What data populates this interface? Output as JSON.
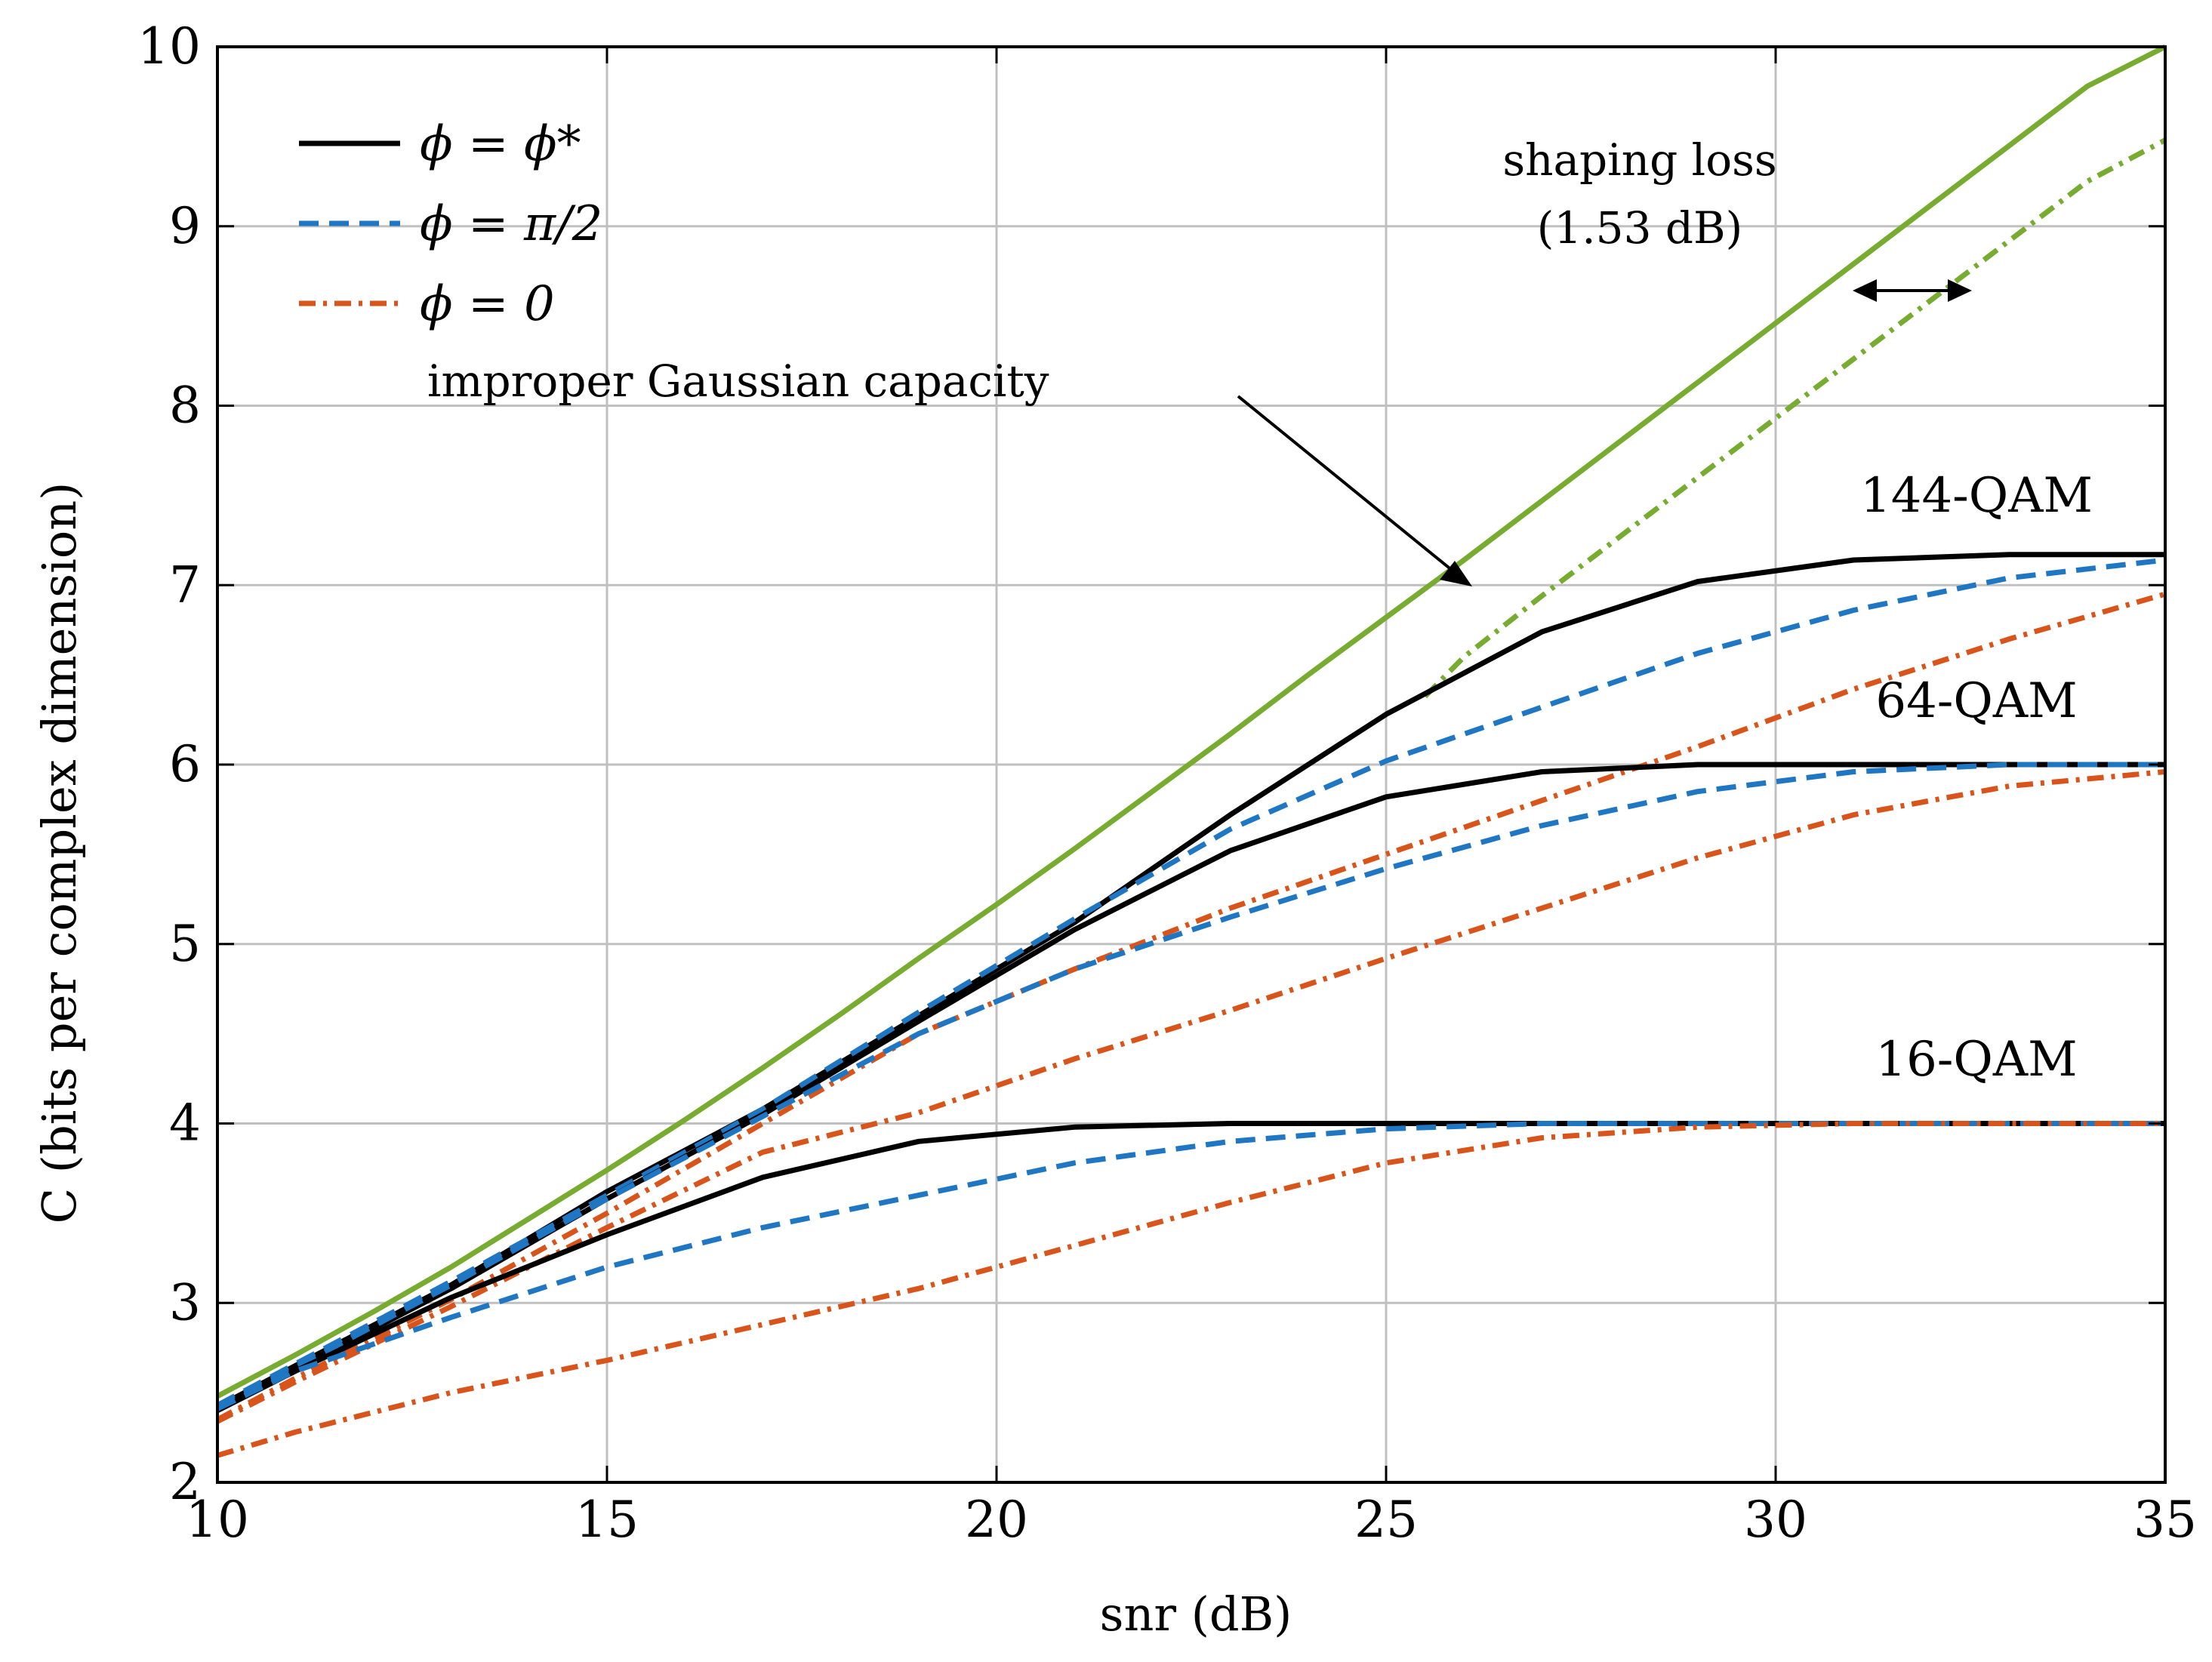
{
  "chart_data": {
    "type": "line",
    "xlabel": "snr (dB)",
    "ylabel": "C (bits per complex dimension)",
    "xlim": [
      10,
      35
    ],
    "ylim": [
      2,
      10
    ],
    "xticks": [
      10,
      15,
      20,
      25,
      30,
      35
    ],
    "yticks": [
      2,
      3,
      4,
      5,
      6,
      7,
      8,
      9,
      10
    ],
    "grid": true,
    "colors": {
      "black": "#000000",
      "blue": "#1f77c4",
      "orange": "#d9541a",
      "green": "#77ac30",
      "grid": "#c0c0c0"
    },
    "legend": {
      "placement": "top-left",
      "entries": [
        {
          "label": "ϕ = ϕ*",
          "style": "solid",
          "color": "black"
        },
        {
          "label": "ϕ = π/2",
          "style": "dashed",
          "color": "blue"
        },
        {
          "label": "ϕ = 0",
          "style": "dashdot",
          "color": "orange"
        }
      ]
    },
    "annotations": {
      "gaussian_label": "improper Gaussian capacity",
      "shaping_line1": "shaping loss",
      "shaping_line2": "(1.53 dB)",
      "qam144": "144-QAM",
      "qam64": "64-QAM",
      "qam16": "16-QAM"
    },
    "series": [
      {
        "name": "improper Gaussian capacity",
        "color": "green",
        "style": "solid",
        "x": [
          10,
          11,
          12,
          13,
          14,
          15,
          16,
          17,
          18,
          19,
          20,
          21,
          22,
          23,
          24,
          25,
          26,
          27,
          28,
          29,
          30,
          31,
          32,
          33,
          34,
          35
        ],
        "y": [
          2.48,
          2.71,
          2.95,
          3.2,
          3.47,
          3.74,
          4.02,
          4.31,
          4.61,
          4.92,
          5.22,
          5.53,
          5.85,
          6.17,
          6.5,
          6.82,
          7.14,
          7.47,
          7.8,
          8.13,
          8.46,
          8.79,
          9.12,
          9.45,
          9.78,
          10.0
        ]
      },
      {
        "name": "shaping loss curve",
        "color": "green",
        "style": "dashdot",
        "x": [
          25.5,
          26,
          27,
          28,
          29,
          30,
          31,
          32,
          33,
          34,
          35
        ],
        "y": [
          6.38,
          6.6,
          6.94,
          7.27,
          7.6,
          7.93,
          8.26,
          8.59,
          8.92,
          9.25,
          9.48
        ]
      },
      {
        "name": "144-QAM ϕ=ϕ*",
        "color": "black",
        "style": "solid",
        "x": [
          10,
          11,
          13,
          15,
          17,
          19,
          21,
          23,
          25,
          27,
          29,
          31,
          33,
          35
        ],
        "y": [
          2.42,
          2.65,
          3.1,
          3.62,
          4.08,
          4.6,
          5.12,
          5.72,
          6.28,
          6.74,
          7.02,
          7.14,
          7.17,
          7.17
        ]
      },
      {
        "name": "144-QAM ϕ=π/2",
        "color": "blue",
        "style": "dashed",
        "x": [
          10,
          11,
          13,
          15,
          17,
          19,
          21,
          23,
          25,
          27,
          29,
          31,
          33,
          35
        ],
        "y": [
          2.43,
          2.66,
          3.12,
          3.6,
          4.08,
          4.62,
          5.14,
          5.64,
          6.02,
          6.32,
          6.62,
          6.86,
          7.04,
          7.14
        ]
      },
      {
        "name": "144-QAM ϕ=0",
        "color": "orange",
        "style": "dashdot",
        "x": [
          10,
          11,
          13,
          15,
          17,
          19,
          21,
          23,
          25,
          27,
          29,
          31,
          33,
          35
        ],
        "y": [
          2.35,
          2.58,
          3.02,
          3.5,
          4.0,
          4.5,
          4.86,
          5.2,
          5.5,
          5.8,
          6.1,
          6.42,
          6.7,
          6.95
        ]
      },
      {
        "name": "64-QAM ϕ=ϕ*",
        "color": "black",
        "style": "solid",
        "x": [
          10,
          11,
          13,
          15,
          17,
          19,
          21,
          23,
          25,
          27,
          29,
          31,
          33,
          35
        ],
        "y": [
          2.41,
          2.63,
          3.08,
          3.58,
          4.05,
          4.57,
          5.08,
          5.52,
          5.82,
          5.96,
          6.0,
          6.0,
          6.0,
          6.0
        ]
      },
      {
        "name": "64-QAM ϕ=π/2",
        "color": "blue",
        "style": "dashed",
        "x": [
          10,
          11,
          13,
          15,
          17,
          19,
          21,
          23,
          25,
          27,
          29,
          31,
          33,
          35
        ],
        "y": [
          2.42,
          2.64,
          3.1,
          3.58,
          4.04,
          4.5,
          4.86,
          5.15,
          5.42,
          5.66,
          5.85,
          5.96,
          6.0,
          6.0
        ]
      },
      {
        "name": "64-QAM ϕ=0",
        "color": "orange",
        "style": "dashdot",
        "x": [
          10,
          11,
          13,
          15,
          17,
          19,
          21,
          23,
          25,
          27,
          29,
          31,
          33,
          35
        ],
        "y": [
          2.34,
          2.56,
          2.98,
          3.42,
          3.84,
          4.06,
          4.36,
          4.63,
          4.92,
          5.2,
          5.48,
          5.72,
          5.88,
          5.96
        ]
      },
      {
        "name": "16-QAM ϕ=ϕ*",
        "color": "black",
        "style": "solid",
        "x": [
          10,
          11,
          13,
          15,
          17,
          19,
          21,
          23,
          25,
          27,
          29,
          31,
          33,
          35
        ],
        "y": [
          2.4,
          2.62,
          3.03,
          3.38,
          3.7,
          3.9,
          3.98,
          4.0,
          4.0,
          4.0,
          4.0,
          4.0,
          4.0,
          4.0
        ]
      },
      {
        "name": "16-QAM ϕ=π/2",
        "color": "blue",
        "style": "dashed",
        "x": [
          10,
          11,
          13,
          15,
          17,
          19,
          21,
          23,
          25,
          27,
          29,
          31,
          33,
          35
        ],
        "y": [
          2.41,
          2.62,
          2.92,
          3.2,
          3.42,
          3.6,
          3.78,
          3.9,
          3.97,
          4.0,
          4.0,
          4.0,
          4.0,
          4.0
        ]
      },
      {
        "name": "16-QAM ϕ=0",
        "color": "orange",
        "style": "dashdot",
        "x": [
          10,
          11,
          13,
          15,
          17,
          19,
          21,
          23,
          25,
          27,
          29,
          31,
          33,
          35
        ],
        "y": [
          2.15,
          2.28,
          2.5,
          2.68,
          2.88,
          3.08,
          3.32,
          3.56,
          3.78,
          3.92,
          3.98,
          4.0,
          4.0,
          4.0
        ]
      }
    ]
  }
}
